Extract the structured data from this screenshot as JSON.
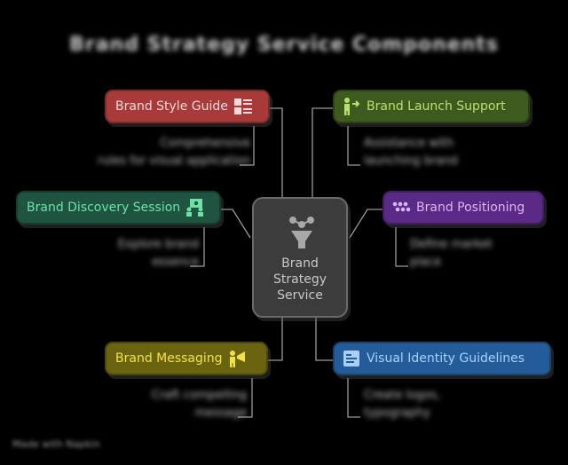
{
  "title": "Brand Strategy Service Components",
  "center": {
    "label": "Brand\nStrategy\nService",
    "color": "#3c3c3c"
  },
  "nodes": {
    "style_guide": {
      "label": "Brand Style Guide",
      "color": "#a83a3a",
      "text_color": "#f3d9d9",
      "icon": "style-guide-icon"
    },
    "launch": {
      "label": "Brand Launch Support",
      "color": "#3f5a1e",
      "text_color": "#b8e06e",
      "icon": "launch-icon"
    },
    "discovery": {
      "label": "Brand Discovery Session",
      "color": "#1f5540",
      "text_color": "#6ee0a8",
      "icon": "discovery-icon"
    },
    "positioning": {
      "label": "Brand Positioning",
      "color": "#5b2a86",
      "text_color": "#d6b6f5",
      "icon": "positioning-icon"
    },
    "messaging": {
      "label": "Brand Messaging",
      "color": "#6a6410",
      "text_color": "#f2e14a",
      "icon": "messaging-icon"
    },
    "visual": {
      "label": "Visual Identity Guidelines",
      "color": "#245c9a",
      "text_color": "#a8d0fb",
      "icon": "visual-identity-icon"
    }
  },
  "descriptions": {
    "style_guide": "Comprehensive\nrules for visual application",
    "launch": "Assistance with\nlaunching brand",
    "discovery": "Explore brand\nessence",
    "positioning": "Define market\nplace",
    "messaging": "Craft compelling\nmessage",
    "visual": "Create logos,\ntypography"
  },
  "watermark": "Made with Napkin"
}
